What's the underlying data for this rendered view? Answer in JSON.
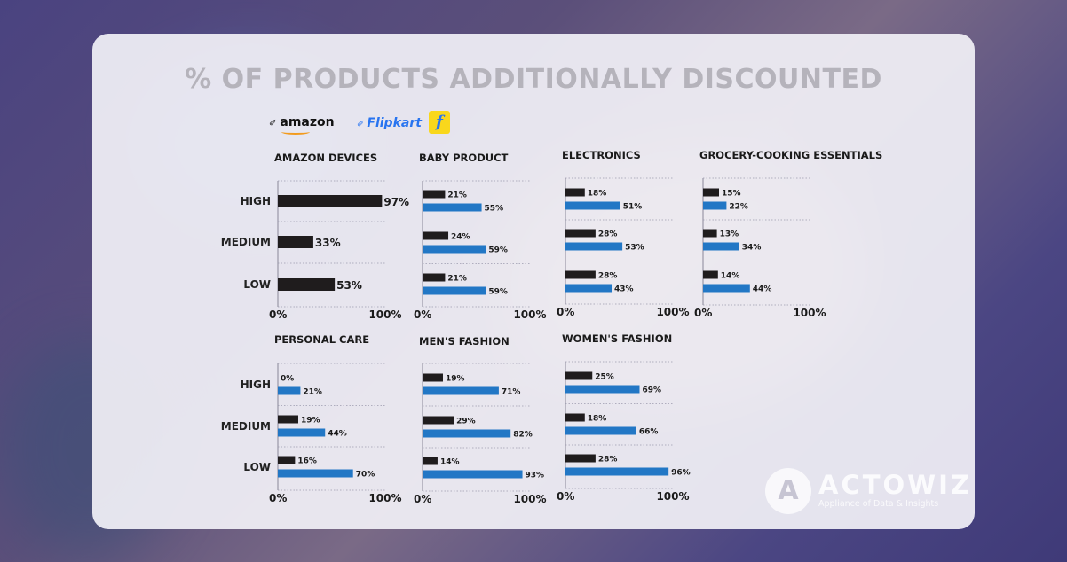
{
  "title": "% OF PRODUCTS ADDITIONALLY DISCOUNTED",
  "logos": {
    "amazon": "amazon",
    "flipkart": "Flipkart",
    "flipkart_icon": "f"
  },
  "watermark": {
    "icon": "A",
    "name": "ACTOWIZ",
    "tagline": "Appliance of Data & Insights"
  },
  "colors": {
    "amazon_series": "#1f1c1d",
    "flipkart_series": "#2277c5",
    "title": "#b5b3bb"
  },
  "chart_data": [
    {
      "type": "bar",
      "title": "AMAZON DEVICES",
      "categories": [
        "HIGH",
        "MEDIUM",
        "LOW"
      ],
      "series": [
        {
          "values": [
            97,
            33,
            53
          ]
        }
      ],
      "xlim": [
        0,
        100
      ],
      "tick_labels": [
        "0%",
        "100%"
      ]
    },
    {
      "type": "bar",
      "title": "BABY PRODUCT",
      "categories": [
        "HIGH",
        "MEDIUM",
        "LOW"
      ],
      "series": [
        {
          "values": [
            21,
            24,
            21
          ]
        },
        {
          "values": [
            55,
            59,
            59
          ]
        }
      ],
      "xlim": [
        0,
        100
      ],
      "tick_labels": [
        "0%",
        "100%"
      ]
    },
    {
      "type": "bar",
      "title": "ELECTRONICS",
      "categories": [
        "HIGH",
        "MEDIUM",
        "LOW"
      ],
      "series": [
        {
          "values": [
            18,
            28,
            28
          ]
        },
        {
          "values": [
            51,
            53,
            43
          ]
        }
      ],
      "xlim": [
        0,
        100
      ],
      "tick_labels": [
        "0%",
        "100%"
      ]
    },
    {
      "type": "bar",
      "title": "GROCERY-COOKING ESSENTIALS",
      "categories": [
        "HIGH",
        "MEDIUM",
        "LOW"
      ],
      "series": [
        {
          "values": [
            15,
            13,
            14
          ]
        },
        {
          "values": [
            22,
            34,
            44
          ]
        }
      ],
      "xlim": [
        0,
        100
      ],
      "tick_labels": [
        "0%",
        "100%"
      ]
    },
    {
      "type": "bar",
      "title": "PERSONAL CARE",
      "categories": [
        "HIGH",
        "MEDIUM",
        "LOW"
      ],
      "series": [
        {
          "values": [
            0,
            19,
            16
          ]
        },
        {
          "values": [
            21,
            44,
            70
          ]
        }
      ],
      "xlim": [
        0,
        100
      ],
      "tick_labels": [
        "0%",
        "100%"
      ]
    },
    {
      "type": "bar",
      "title": "MEN'S FASHION",
      "categories": [
        "HIGH",
        "MEDIUM",
        "LOW"
      ],
      "series": [
        {
          "values": [
            19,
            29,
            14
          ]
        },
        {
          "values": [
            71,
            82,
            93
          ]
        }
      ],
      "xlim": [
        0,
        100
      ],
      "tick_labels": [
        "0%",
        "100%"
      ]
    },
    {
      "type": "bar",
      "title": "WOMEN'S FASHION",
      "categories": [
        "HIGH",
        "MEDIUM",
        "LOW"
      ],
      "series": [
        {
          "values": [
            25,
            18,
            28
          ]
        },
        {
          "values": [
            69,
            66,
            96
          ]
        }
      ],
      "xlim": [
        0,
        100
      ],
      "tick_labels": [
        "0%",
        "100%"
      ]
    }
  ]
}
